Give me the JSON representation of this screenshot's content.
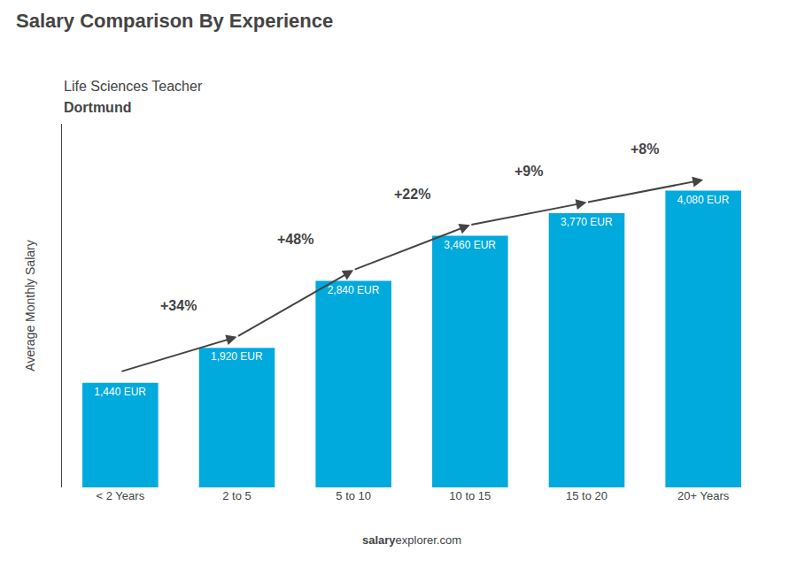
{
  "chart_data": {
    "type": "bar",
    "title": "Salary Comparison By Experience",
    "subtitle": [
      "Life Sciences Teacher",
      "Dortmund"
    ],
    "categories": [
      "< 2 Years",
      "2 to 5",
      "5 to 10",
      "10 to 15",
      "15 to 20",
      "20+ Years"
    ],
    "values": [
      1440,
      1920,
      2840,
      3460,
      3770,
      4080
    ],
    "value_labels": [
      "1,440 EUR",
      "1,920 EUR",
      "2,840 EUR",
      "3,460 EUR",
      "3,770 EUR",
      "4,080 EUR"
    ],
    "data_labels": true,
    "color": "#00aadd",
    "ylabel": "Average Monthly Salary",
    "annotations": [
      "+34%",
      "+48%",
      "+22%",
      "+9%",
      "+8%"
    ],
    "footer": [
      "salary",
      "explorer.com"
    ],
    "ylim": [
      0,
      5000
    ],
    "grid": false,
    "tick_labels": "x"
  }
}
